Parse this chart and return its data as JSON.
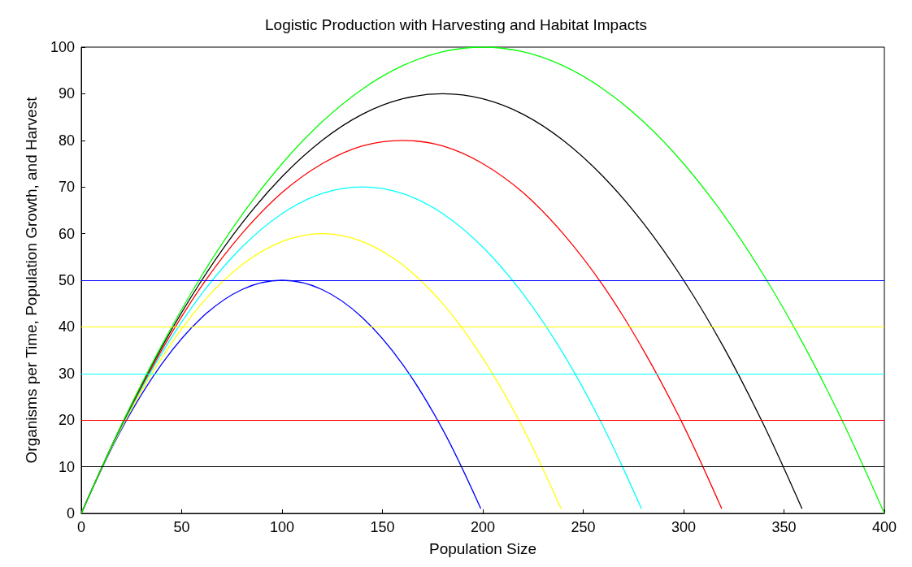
{
  "chart_data": {
    "type": "line",
    "title": "Logistic Production with Harvesting and Habitat Impacts",
    "xlabel": "Population Size",
    "ylabel": "Organisms per Time, Population Growth, and Harvest",
    "xlim": [
      0,
      400
    ],
    "xticks": [
      0,
      50,
      100,
      150,
      200,
      250,
      300,
      350,
      400
    ],
    "ylim": [
      0,
      100
    ],
    "yticks": [
      0,
      10,
      20,
      30,
      40,
      50,
      60,
      70,
      80,
      90,
      100
    ],
    "grid": false,
    "marker": "none",
    "line_style": "solid",
    "series": [
      {
        "color": "#0000ff",
        "x": [
          0,
          20,
          40,
          60,
          80,
          100,
          120,
          140,
          160,
          180,
          199
        ],
        "values": [
          0,
          18,
          32,
          42,
          48,
          50,
          48,
          42,
          32,
          18,
          1
        ]
      },
      {
        "color": "#ffff00",
        "x": [
          0,
          20,
          40,
          60,
          80,
          100,
          120,
          140,
          160,
          180,
          200,
          220,
          239
        ],
        "values": [
          0,
          18.3,
          33.3,
          45,
          53.3,
          58.3,
          60,
          58.3,
          53.3,
          45,
          33.3,
          18.3,
          1
        ]
      },
      {
        "color": "#00ffff",
        "x": [
          0,
          20,
          40,
          60,
          80,
          100,
          120,
          140,
          160,
          180,
          200,
          220,
          240,
          260,
          279
        ],
        "values": [
          0,
          18.6,
          34.3,
          47.1,
          57.1,
          64.3,
          68.6,
          70,
          68.6,
          64.3,
          57.1,
          47.1,
          34.3,
          18.6,
          1
        ]
      },
      {
        "color": "#ff0000",
        "x": [
          0,
          20,
          40,
          60,
          80,
          100,
          120,
          140,
          160,
          180,
          200,
          220,
          240,
          260,
          280,
          300,
          319
        ],
        "values": [
          0,
          18.8,
          35,
          48.8,
          60,
          68.8,
          75,
          78.8,
          80,
          78.8,
          75,
          68.8,
          60,
          48.8,
          35,
          18.8,
          1
        ]
      },
      {
        "color": "#000000",
        "x": [
          0,
          20,
          40,
          60,
          80,
          100,
          120,
          140,
          160,
          180,
          200,
          220,
          240,
          260,
          280,
          300,
          320,
          340,
          359
        ],
        "values": [
          0,
          18.9,
          35.6,
          50,
          62.2,
          72.2,
          80,
          85.6,
          88.9,
          90,
          88.9,
          85.6,
          80,
          72.2,
          62.2,
          50,
          35.6,
          18.9,
          1
        ]
      },
      {
        "color": "#00ff00",
        "x": [
          0,
          20,
          40,
          60,
          80,
          100,
          120,
          140,
          160,
          180,
          200,
          220,
          240,
          260,
          280,
          300,
          320,
          340,
          360,
          380,
          400
        ],
        "values": [
          0,
          19,
          36,
          51,
          64,
          75,
          84,
          91,
          96,
          99,
          100,
          99,
          96,
          91,
          84,
          75,
          64,
          51,
          36,
          19,
          0
        ]
      }
    ],
    "ref_lines": [
      {
        "axis": "y",
        "value": 50,
        "color": "#0000ff"
      },
      {
        "axis": "y",
        "value": 40,
        "color": "#ffff00"
      },
      {
        "axis": "y",
        "value": 30,
        "color": "#00ffff"
      },
      {
        "axis": "y",
        "value": 20,
        "color": "#ff0000"
      },
      {
        "axis": "y",
        "value": 10,
        "color": "#000000"
      }
    ]
  }
}
